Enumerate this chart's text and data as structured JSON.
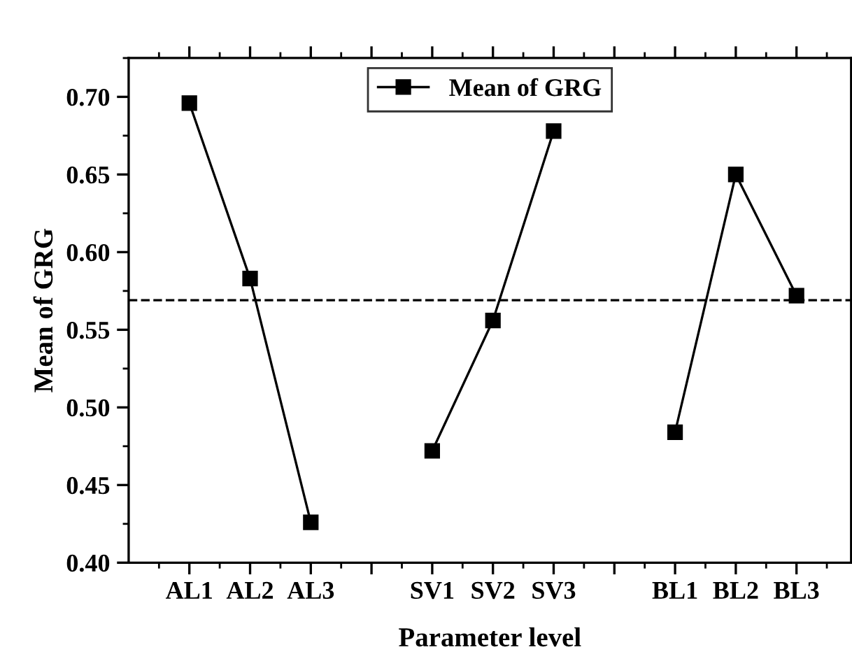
{
  "chart_data": {
    "type": "line",
    "xlabel": "Parameter level",
    "ylabel": "Mean of GRG",
    "categories": [
      "AL1",
      "AL2",
      "AL3",
      null,
      "SV1",
      "SV2",
      "SV3",
      null,
      "BL1",
      "BL2",
      "BL3"
    ],
    "series": [
      {
        "name": "Mean of GRG",
        "color": "#000000",
        "values": [
          0.696,
          0.583,
          0.426,
          null,
          0.472,
          0.556,
          0.678,
          null,
          0.484,
          0.65,
          0.572
        ]
      }
    ],
    "ylim": [
      0.4,
      0.725
    ],
    "yticks": [
      {
        "value": 0.4,
        "label": "0.40"
      },
      0.45,
      {
        "value": 0.5,
        "label": "0.50"
      },
      0.55,
      {
        "value": 0.6,
        "label": "0.60"
      },
      0.65,
      {
        "value": 0.7,
        "label": "0.70"
      }
    ],
    "ref_lines": [
      {
        "axis": "y",
        "value": 0.569,
        "color": "#000000",
        "line_style": "dashed"
      }
    ],
    "marker": "square",
    "line_style": "solid",
    "legend": "top",
    "grid": false
  }
}
